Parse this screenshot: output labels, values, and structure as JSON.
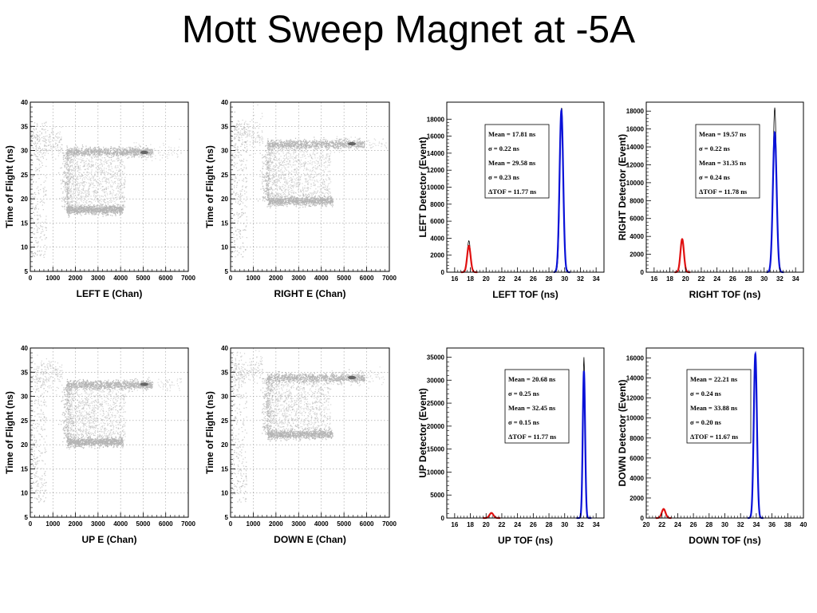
{
  "slide": {
    "title": "Mott Sweep Magnet at -5A"
  },
  "colors": {
    "points": "#b4b4b4",
    "hot": "#555555",
    "grid": "#9a9a9a",
    "red": "#e01010",
    "blue": "#0a12d8",
    "black": "#000000"
  },
  "chart_data": [
    {
      "id": "left-e",
      "type": "scatter",
      "xlabel": "LEFT E (Chan)",
      "ylabel": "Time of Flight (ns)",
      "xlim": [
        0,
        7000
      ],
      "ylim": [
        5,
        40
      ],
      "xticks": [
        0,
        1000,
        2000,
        3000,
        4000,
        5000,
        6000,
        7000
      ],
      "yticks": [
        5,
        10,
        15,
        20,
        25,
        30,
        35,
        40
      ],
      "grid": true,
      "bands": [
        {
          "x_start": 1600,
          "x_end": 5400,
          "y": 29.8
        },
        {
          "x_start": 1600,
          "x_end": 4100,
          "y": 17.8
        }
      ],
      "box": {
        "x_start": 1600,
        "x_end": 4200,
        "y_low": 17.8,
        "y_high": 29.8
      },
      "hotspot": {
        "x": 5050,
        "y": 29.6
      }
    },
    {
      "id": "right-e",
      "type": "scatter",
      "xlabel": "RIGHT E (Chan)",
      "ylabel": "Time of Flight (ns)",
      "xlim": [
        0,
        7000
      ],
      "ylim": [
        5,
        40
      ],
      "xticks": [
        0,
        1000,
        2000,
        3000,
        4000,
        5000,
        6000,
        7000
      ],
      "yticks": [
        5,
        10,
        15,
        20,
        25,
        30,
        35,
        40
      ],
      "grid": true,
      "bands": [
        {
          "x_start": 1600,
          "x_end": 5900,
          "y": 31.4
        },
        {
          "x_start": 1600,
          "x_end": 4500,
          "y": 19.6
        }
      ],
      "box": {
        "x_start": 1600,
        "x_end": 4400,
        "y_low": 19.6,
        "y_high": 31.4
      },
      "hotspot": {
        "x": 5350,
        "y": 31.4
      }
    },
    {
      "id": "left-tof",
      "type": "line",
      "xlabel": "LEFT TOF (ns)",
      "ylabel": "LEFT Detector (Event)",
      "xlim": [
        15,
        35
      ],
      "ylim": [
        0,
        20000
      ],
      "xticks": [
        16,
        18,
        20,
        22,
        24,
        26,
        28,
        30,
        32,
        34
      ],
      "yticks": [
        0,
        2000,
        4000,
        6000,
        8000,
        10000,
        12000,
        14000,
        16000,
        18000
      ],
      "series": [
        {
          "color": "red",
          "peaks": [
            {
              "mean": 17.81,
              "sigma": 0.22,
              "height": 3100
            }
          ],
          "fit_range": [
            16.8,
            18.9
          ]
        },
        {
          "color": "blue",
          "peaks": [
            {
              "mean": 29.58,
              "sigma": 0.23,
              "height": 19000
            }
          ],
          "fit_range": [
            28.6,
            30.7
          ]
        }
      ],
      "data_peaks": [
        {
          "x": 17.81,
          "y": 3700
        },
        {
          "x": 29.62,
          "y": 19400
        }
      ],
      "stats": [
        "Mean = 17.81 ns",
        "σ = 0.22 ns",
        "Mean = 29.58 ns",
        "σ = 0.23 ns",
        "ΔTOF = 11.77 ns"
      ]
    },
    {
      "id": "right-tof",
      "type": "line",
      "xlabel": "RIGHT  TOF (ns)",
      "ylabel": "RIGHT Detector (Event)",
      "xlim": [
        15,
        35
      ],
      "ylim": [
        0,
        19000
      ],
      "xticks": [
        16,
        18,
        20,
        22,
        24,
        26,
        28,
        30,
        32,
        34
      ],
      "yticks": [
        0,
        2000,
        4000,
        6000,
        8000,
        10000,
        12000,
        14000,
        16000,
        18000
      ],
      "series": [
        {
          "color": "red",
          "peaks": [
            {
              "mean": 19.57,
              "sigma": 0.22,
              "height": 3700
            }
          ],
          "fit_range": [
            18.6,
            20.6
          ]
        },
        {
          "color": "blue",
          "peaks": [
            {
              "mean": 31.35,
              "sigma": 0.24,
              "height": 15600
            }
          ],
          "fit_range": [
            30.3,
            32.5
          ]
        }
      ],
      "data_peaks": [
        {
          "x": 19.57,
          "y": 3750
        },
        {
          "x": 31.35,
          "y": 18400
        }
      ],
      "stats": [
        "Mean = 19.57 ns",
        "σ = 0.22 ns",
        "Mean = 31.35 ns",
        "σ = 0.24 ns",
        "ΔTOF = 11.78 ns"
      ]
    },
    {
      "id": "up-e",
      "type": "scatter",
      "xlabel": "UP E (Chan)",
      "ylabel": "Time of Flight (ns)",
      "xlim": [
        0,
        7000
      ],
      "ylim": [
        5,
        40
      ],
      "xticks": [
        0,
        1000,
        2000,
        3000,
        4000,
        5000,
        6000,
        7000
      ],
      "yticks": [
        5,
        10,
        15,
        20,
        25,
        30,
        35,
        40
      ],
      "grid": true,
      "bands": [
        {
          "x_start": 1600,
          "x_end": 5400,
          "y": 32.5
        },
        {
          "x_start": 1600,
          "x_end": 4100,
          "y": 20.6
        }
      ],
      "box": {
        "x_start": 1600,
        "x_end": 4200,
        "y_low": 20.6,
        "y_high": 32.5
      },
      "hotspot": {
        "x": 5050,
        "y": 32.5
      }
    },
    {
      "id": "down-e",
      "type": "scatter",
      "xlabel": "DOWN E (Chan)",
      "ylabel": "Time of Flight (ns)",
      "xlim": [
        0,
        7000
      ],
      "ylim": [
        5,
        40
      ],
      "xticks": [
        0,
        1000,
        2000,
        3000,
        4000,
        5000,
        6000,
        7000
      ],
      "yticks": [
        5,
        10,
        15,
        20,
        25,
        30,
        35,
        40
      ],
      "grid": true,
      "bands": [
        {
          "x_start": 1600,
          "x_end": 5900,
          "y": 33.9
        },
        {
          "x_start": 1600,
          "x_end": 4500,
          "y": 22.2
        }
      ],
      "box": {
        "x_start": 1600,
        "x_end": 4400,
        "y_low": 22.2,
        "y_high": 33.9
      },
      "hotspot": {
        "x": 5350,
        "y": 33.9
      }
    },
    {
      "id": "up-tof",
      "type": "line",
      "xlabel": "UP TOF (ns)",
      "ylabel": "UP Detector (Event)",
      "xlim": [
        15,
        35
      ],
      "ylim": [
        0,
        37000
      ],
      "xticks": [
        16,
        18,
        20,
        22,
        24,
        26,
        28,
        30,
        32,
        34
      ],
      "yticks": [
        0,
        5000,
        10000,
        15000,
        20000,
        25000,
        30000,
        35000
      ],
      "series": [
        {
          "color": "red",
          "peaks": [
            {
              "mean": 20.68,
              "sigma": 0.25,
              "height": 1100
            }
          ],
          "fit_range": [
            19.6,
            21.8
          ]
        },
        {
          "color": "blue",
          "peaks": [
            {
              "mean": 32.45,
              "sigma": 0.15,
              "height": 32000
            }
          ],
          "fit_range": [
            31.5,
            33.4
          ]
        }
      ],
      "data_peaks": [
        {
          "x": 20.68,
          "y": 1200
        },
        {
          "x": 32.45,
          "y": 35000
        }
      ],
      "stats": [
        "Mean = 20.68 ns",
        "σ = 0.25 ns",
        "Mean = 32.45 ns",
        "σ = 0.15 ns",
        "ΔTOF = 11.77 ns"
      ]
    },
    {
      "id": "down-tof",
      "type": "line",
      "xlabel": "DOWN TOF (ns)",
      "ylabel": "DOWN Detector (Event)",
      "xlim": [
        20,
        40
      ],
      "ylim": [
        0,
        17000
      ],
      "xticks": [
        20,
        22,
        24,
        26,
        28,
        30,
        32,
        34,
        36,
        38,
        40
      ],
      "yticks": [
        0,
        2000,
        4000,
        6000,
        8000,
        10000,
        12000,
        14000,
        16000
      ],
      "series": [
        {
          "color": "red",
          "peaks": [
            {
              "mean": 22.21,
              "sigma": 0.24,
              "height": 900
            }
          ],
          "fit_range": [
            21.2,
            23.2
          ]
        },
        {
          "color": "blue",
          "peaks": [
            {
              "mean": 33.88,
              "sigma": 0.2,
              "height": 16400
            }
          ],
          "fit_range": [
            32.9,
            34.9
          ]
        }
      ],
      "data_peaks": [
        {
          "x": 22.21,
          "y": 950
        },
        {
          "x": 33.88,
          "y": 16500
        }
      ],
      "stats": [
        "Mean = 22.21 ns",
        "σ = 0.24 ns",
        "Mean = 33.88 ns",
        "σ = 0.20 ns",
        "ΔTOF = 11.67 ns"
      ]
    }
  ]
}
